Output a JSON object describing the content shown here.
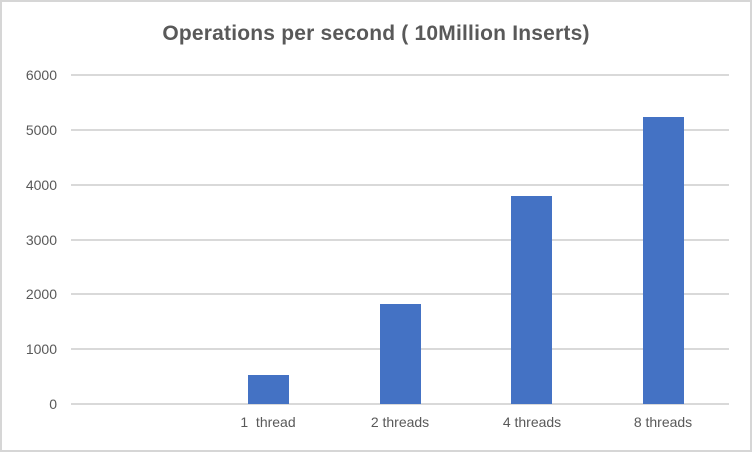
{
  "window": {
    "background": "#ffffff",
    "border_color": "#d6d6d6"
  },
  "chart_data": {
    "type": "bar",
    "title": "Operations per second ( 10Million Inserts)",
    "categories": [
      "1  thread",
      "2 threads",
      "4 threads",
      "8 threads"
    ],
    "values": [
      520,
      1820,
      3800,
      5240
    ],
    "xlabel": "",
    "ylabel": "",
    "ylim": [
      0,
      6000
    ],
    "yticks": [
      0,
      1000,
      2000,
      3000,
      4000,
      5000,
      6000
    ],
    "grid": "horizontal-only",
    "legend": "none",
    "leading_empty_category": true,
    "bar_color": "#4472C4",
    "gridline_color": "#D9D9D9",
    "axis_label_color": "#595959",
    "title_color": "#595959"
  }
}
